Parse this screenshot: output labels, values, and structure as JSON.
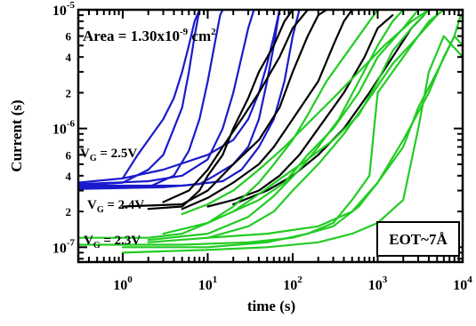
{
  "chart_data": {
    "type": "line",
    "title": "",
    "xlabel": "time (s)",
    "ylabel": "Current (s)",
    "x_scale": "log",
    "y_scale": "log",
    "xlim": [
      0.3,
      10000
    ],
    "ylim": [
      7.5e-08,
      1e-05
    ],
    "grid": false,
    "x_major_ticks": [
      {
        "value": 1,
        "base": "10",
        "exp": "0"
      },
      {
        "value": 10,
        "base": "10",
        "exp": "1"
      },
      {
        "value": 100,
        "base": "10",
        "exp": "2"
      },
      {
        "value": 1000,
        "base": "10",
        "exp": "3"
      },
      {
        "value": 10000,
        "base": "10",
        "exp": "4"
      }
    ],
    "y_major_ticks": [
      {
        "value": 1e-07,
        "base": "10",
        "exp": "-7"
      },
      {
        "value": 1e-06,
        "base": "10",
        "exp": "-6"
      },
      {
        "value": 1e-05,
        "base": "10",
        "exp": "-5"
      }
    ],
    "y_minor_labels": [
      {
        "value": 2e-07,
        "label": "2"
      },
      {
        "value": 4e-07,
        "label": "4"
      },
      {
        "value": 6e-07,
        "label": "6"
      },
      {
        "value": 2e-06,
        "label": "2"
      },
      {
        "value": 4e-06,
        "label": "4"
      },
      {
        "value": 6e-06,
        "label": "6"
      }
    ],
    "annotations": {
      "area": {
        "prefix": "Area = 1.30x10",
        "exp": "-9",
        "suffix": " cm",
        "sup2": "2"
      },
      "eot": "EOT~7Å",
      "vg_25": {
        "main": "V",
        "sub": "G",
        "rest": " = 2.5V"
      },
      "vg_24": {
        "main": "V",
        "sub": "G",
        "rest": " = 2.4V"
      },
      "vg_23": {
        "main": "V",
        "sub": "G",
        "rest": " = 2.3V"
      }
    },
    "series": [
      {
        "group": "2.5V",
        "color": "#1a1acc",
        "points": [
          [
            0.3,
            3.2e-07
          ],
          [
            2,
            3.2e-07
          ],
          [
            4,
            4e-07
          ],
          [
            6,
            6.5e-07
          ],
          [
            8,
            1.2e-06
          ],
          [
            10,
            2.5e-06
          ],
          [
            12,
            5e-06
          ],
          [
            14,
            9e-06
          ],
          [
            15,
            1e-05
          ]
        ]
      },
      {
        "group": "2.5V",
        "color": "#1a1acc",
        "points": [
          [
            0.3,
            3.3e-07
          ],
          [
            1,
            3.5e-07
          ],
          [
            2,
            4.5e-07
          ],
          [
            3,
            6e-07
          ],
          [
            4,
            1e-06
          ],
          [
            5,
            1.5e-06
          ],
          [
            6,
            3e-06
          ],
          [
            7,
            6e-06
          ],
          [
            8,
            1e-05
          ]
        ]
      },
      {
        "group": "2.5V",
        "color": "#1a1acc",
        "points": [
          [
            0.3,
            3.4e-07
          ],
          [
            2,
            3.6e-07
          ],
          [
            5,
            4e-07
          ],
          [
            10,
            5.5e-07
          ],
          [
            15,
            1e-06
          ],
          [
            20,
            2e-06
          ],
          [
            25,
            4e-06
          ],
          [
            30,
            7e-06
          ],
          [
            35,
            1e-05
          ]
        ]
      },
      {
        "group": "2.5V",
        "color": "#1a1acc",
        "points": [
          [
            0.3,
            3.1e-07
          ],
          [
            3,
            3.2e-07
          ],
          [
            8,
            3.4e-07
          ],
          [
            12,
            4e-07
          ],
          [
            20,
            5e-07
          ],
          [
            30,
            7e-07
          ],
          [
            40,
            1.2e-06
          ],
          [
            50,
            2.5e-06
          ],
          [
            60,
            5e-06
          ],
          [
            70,
            1e-05
          ]
        ]
      },
      {
        "group": "2.5V",
        "color": "#1a1acc",
        "points": [
          [
            0.3,
            3.5e-07
          ],
          [
            1,
            3.8e-07
          ],
          [
            1.5,
            6e-07
          ],
          [
            2,
            8e-07
          ],
          [
            3,
            1.2e-06
          ],
          [
            4,
            1.8e-06
          ],
          [
            5,
            3e-06
          ],
          [
            6,
            5e-06
          ],
          [
            7,
            8e-06
          ],
          [
            8,
            1e-05
          ]
        ]
      },
      {
        "group": "2.5V",
        "color": "#1a1acc",
        "points": [
          [
            0.3,
            3.3e-07
          ],
          [
            5,
            3.3e-07
          ],
          [
            15,
            3.6e-07
          ],
          [
            25,
            4.5e-07
          ],
          [
            40,
            7e-07
          ],
          [
            60,
            1.2e-06
          ],
          [
            80,
            2.5e-06
          ],
          [
            100,
            6e-06
          ],
          [
            120,
            1e-05
          ]
        ]
      },
      {
        "group": "2.5V",
        "color": "#1a1acc",
        "points": [
          [
            1,
            3.8e-07
          ],
          [
            3,
            4.5e-07
          ],
          [
            10,
            6e-07
          ],
          [
            20,
            8e-07
          ],
          [
            30,
            1.2e-06
          ],
          [
            40,
            2e-06
          ],
          [
            50,
            3.5e-06
          ],
          [
            60,
            6e-06
          ],
          [
            70,
            1e-05
          ]
        ]
      },
      {
        "group": "2.4V",
        "color": "#000000",
        "points": [
          [
            2,
            2.1e-07
          ],
          [
            5,
            2.2e-07
          ],
          [
            8,
            3e-07
          ],
          [
            10,
            4e-07
          ],
          [
            15,
            6e-07
          ],
          [
            20,
            1e-06
          ],
          [
            30,
            1.8e-06
          ],
          [
            40,
            3e-06
          ],
          [
            60,
            5e-06
          ],
          [
            80,
            8e-06
          ],
          [
            100,
            1e-05
          ]
        ]
      },
      {
        "group": "2.4V",
        "color": "#000000",
        "points": [
          [
            1,
            2.2e-07
          ],
          [
            5,
            2.3e-07
          ],
          [
            10,
            3e-07
          ],
          [
            20,
            5e-07
          ],
          [
            40,
            8e-07
          ],
          [
            70,
            1.5e-06
          ],
          [
            100,
            3e-06
          ],
          [
            150,
            6e-06
          ],
          [
            200,
            9e-06
          ],
          [
            250,
            1e-05
          ]
        ]
      },
      {
        "group": "2.4V",
        "color": "#000000",
        "points": [
          [
            5,
            2.1e-07
          ],
          [
            10,
            2.6e-07
          ],
          [
            20,
            3.5e-07
          ],
          [
            40,
            5e-07
          ],
          [
            60,
            7e-07
          ],
          [
            100,
            1.2e-06
          ],
          [
            200,
            2.5e-06
          ],
          [
            300,
            5e-06
          ],
          [
            400,
            8e-06
          ],
          [
            500,
            1e-05
          ]
        ]
      },
      {
        "group": "2.4V",
        "color": "#000000",
        "points": [
          [
            10,
            2.2e-07
          ],
          [
            20,
            2.5e-07
          ],
          [
            40,
            3e-07
          ],
          [
            70,
            4e-07
          ],
          [
            120,
            6e-07
          ],
          [
            200,
            1e-06
          ],
          [
            400,
            2e-06
          ],
          [
            700,
            4e-06
          ],
          [
            1000,
            7e-06
          ],
          [
            1500,
            9e-06
          ]
        ]
      },
      {
        "group": "2.4V",
        "color": "#000000",
        "points": [
          [
            3,
            2.4e-07
          ],
          [
            6,
            3e-07
          ],
          [
            10,
            4.5e-07
          ],
          [
            15,
            7e-07
          ],
          [
            25,
            1.2e-06
          ],
          [
            40,
            2e-06
          ],
          [
            70,
            4e-06
          ],
          [
            100,
            7e-06
          ],
          [
            150,
            1e-05
          ]
        ]
      },
      {
        "group": "2.4V",
        "color": "#000000",
        "points": [
          [
            20,
            2.3e-07
          ],
          [
            50,
            3e-07
          ],
          [
            100,
            4e-07
          ],
          [
            200,
            6e-07
          ],
          [
            400,
            1e-06
          ],
          [
            800,
            2e-06
          ],
          [
            1500,
            4e-06
          ],
          [
            2500,
            7e-06
          ],
          [
            3500,
            9e-06
          ]
        ]
      },
      {
        "group": "2.3V",
        "color": "#22cc22",
        "points": [
          [
            0.3,
            1.2e-07
          ],
          [
            2,
            1.2e-07
          ],
          [
            5,
            1.3e-07
          ],
          [
            10,
            1.6e-07
          ],
          [
            20,
            2e-07
          ],
          [
            40,
            2.5e-07
          ],
          [
            80,
            3.5e-07
          ],
          [
            150,
            6e-07
          ],
          [
            300,
            1e-06
          ],
          [
            600,
            2e-06
          ],
          [
            1000,
            4e-06
          ],
          [
            2000,
            7e-06
          ],
          [
            3000,
            1e-05
          ]
        ]
      },
      {
        "group": "2.3V",
        "color": "#22cc22",
        "points": [
          [
            2,
            1.1e-07
          ],
          [
            10,
            1.2e-07
          ],
          [
            30,
            1.5e-07
          ],
          [
            60,
            2e-07
          ],
          [
            100,
            3e-07
          ],
          [
            200,
            5e-07
          ],
          [
            400,
            9e-07
          ],
          [
            800,
            1.8e-06
          ],
          [
            1500,
            3.5e-06
          ],
          [
            3000,
            6e-06
          ],
          [
            5000,
            9e-06
          ]
        ]
      },
      {
        "group": "2.3V",
        "color": "#22cc22",
        "points": [
          [
            1,
            1e-07
          ],
          [
            10,
            1e-07
          ],
          [
            50,
            1.1e-07
          ],
          [
            150,
            1.3e-07
          ],
          [
            300,
            1.6e-07
          ],
          [
            500,
            2.5e-07
          ],
          [
            800,
            4e-07
          ],
          [
            1000,
            2e-06
          ],
          [
            1500,
            3e-06
          ],
          [
            2500,
            5e-06
          ],
          [
            4000,
            8e-06
          ],
          [
            6000,
            1e-05
          ]
        ]
      },
      {
        "group": "2.3V",
        "color": "#22cc22",
        "points": [
          [
            0.3,
            1.05e-07
          ],
          [
            5,
            1.05e-07
          ],
          [
            30,
            1.1e-07
          ],
          [
            100,
            1.2e-07
          ],
          [
            300,
            1.5e-07
          ],
          [
            600,
            2.2e-07
          ],
          [
            1000,
            3.5e-07
          ],
          [
            2000,
            7e-07
          ],
          [
            3000,
            1.5e-06
          ],
          [
            5000,
            3e-06
          ],
          [
            8000,
            6e-06
          ],
          [
            9500,
            9e-06
          ]
        ]
      },
      {
        "group": "2.3V",
        "color": "#22cc22",
        "points": [
          [
            3,
            1.3e-07
          ],
          [
            10,
            1.6e-07
          ],
          [
            20,
            2.2e-07
          ],
          [
            40,
            3.5e-07
          ],
          [
            60,
            5e-07
          ],
          [
            100,
            8e-07
          ],
          [
            150,
            1.3e-06
          ],
          [
            250,
            2.5e-06
          ],
          [
            400,
            4e-06
          ],
          [
            700,
            7e-06
          ],
          [
            1000,
            1e-05
          ]
        ]
      },
      {
        "group": "2.3V",
        "color": "#22cc22",
        "points": [
          [
            5,
            1.9e-07
          ],
          [
            10,
            2.3e-07
          ],
          [
            20,
            3e-07
          ],
          [
            40,
            4.5e-07
          ],
          [
            80,
            7e-07
          ],
          [
            150,
            1.1e-06
          ],
          [
            300,
            1.8e-06
          ],
          [
            600,
            3e-06
          ],
          [
            1200,
            5e-06
          ],
          [
            2500,
            8e-06
          ],
          [
            4000,
            1e-05
          ]
        ]
      },
      {
        "group": "2.3V",
        "color": "#22cc22",
        "points": [
          [
            10,
            1.2e-07
          ],
          [
            50,
            1.3e-07
          ],
          [
            200,
            1.5e-07
          ],
          [
            500,
            2e-07
          ],
          [
            1000,
            3.5e-07
          ],
          [
            2000,
            8e-07
          ],
          [
            4000,
            2e-06
          ],
          [
            6000,
            4e-06
          ],
          [
            8000,
            6e-06
          ],
          [
            10000,
            5e-06
          ]
        ]
      },
      {
        "group": "2.3V",
        "color": "#22cc22",
        "points": [
          [
            1,
            9e-08
          ],
          [
            10,
            9.5e-08
          ],
          [
            50,
            1e-07
          ],
          [
            200,
            1.1e-07
          ],
          [
            500,
            1.3e-07
          ],
          [
            1000,
            1.6e-07
          ],
          [
            2000,
            2.5e-07
          ],
          [
            3000,
            1e-06
          ],
          [
            4000,
            3e-06
          ],
          [
            6000,
            6e-06
          ],
          [
            10000,
            4e-06
          ]
        ]
      },
      {
        "group": "2.3V",
        "color": "#22cc22",
        "points": [
          [
            20,
            2e-07
          ],
          [
            40,
            2.8e-07
          ],
          [
            80,
            4e-07
          ],
          [
            150,
            5.5e-07
          ],
          [
            300,
            8e-07
          ],
          [
            600,
            1.3e-06
          ],
          [
            1000,
            2.5e-06
          ],
          [
            1500,
            4.5e-06
          ],
          [
            2500,
            7e-06
          ],
          [
            4000,
            1e-05
          ]
        ]
      },
      {
        "group": "2.3V",
        "color": "#22cc22",
        "points": [
          [
            2,
            1.15e-07
          ],
          [
            10,
            1.3e-07
          ],
          [
            30,
            1.8e-07
          ],
          [
            60,
            2.7e-07
          ],
          [
            120,
            4.5e-07
          ],
          [
            200,
            7e-07
          ],
          [
            350,
            1.2e-06
          ],
          [
            600,
            2.5e-06
          ],
          [
            1000,
            5e-06
          ],
          [
            1500,
            8e-06
          ],
          [
            2000,
            1e-05
          ]
        ]
      }
    ]
  }
}
